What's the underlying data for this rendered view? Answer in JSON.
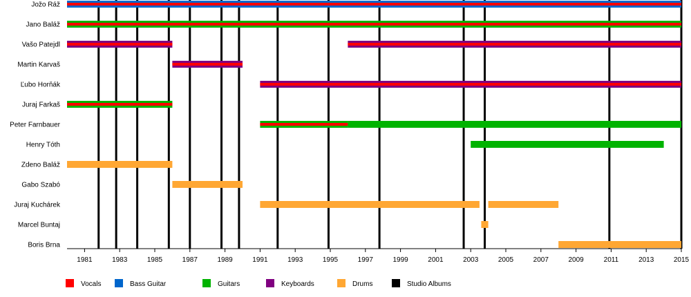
{
  "chart_data": {
    "type": "timeline",
    "x_range": [
      1980.0,
      2015.0
    ],
    "x_ticks": [
      "1981",
      "1983",
      "1985",
      "1987",
      "1989",
      "1991",
      "1993",
      "1995",
      "1997",
      "1999",
      "2001",
      "2003",
      "2005",
      "2007",
      "2009",
      "2011",
      "2013",
      "2015"
    ],
    "members": [
      {
        "name": "Jožo Ráž",
        "bars": [
          {
            "start": 1980.0,
            "end": 2015.0,
            "roles": [
              "vocals",
              "bass"
            ]
          }
        ]
      },
      {
        "name": "Jano Baláž",
        "bars": [
          {
            "start": 1980.0,
            "end": 2015.0,
            "roles": [
              "vocals",
              "guitars"
            ]
          }
        ]
      },
      {
        "name": "Vašo Patejdl",
        "bars": [
          {
            "start": 1980.0,
            "end": 1986.0,
            "roles": [
              "vocals",
              "keyboards"
            ]
          },
          {
            "start": 1996.0,
            "end": 2015.0,
            "roles": [
              "vocals",
              "keyboards"
            ]
          }
        ]
      },
      {
        "name": "Martin Karvaš",
        "bars": [
          {
            "start": 1986.0,
            "end": 1990.0,
            "roles": [
              "vocals",
              "keyboards"
            ]
          }
        ]
      },
      {
        "name": "Ľubo Horňák",
        "bars": [
          {
            "start": 1991.0,
            "end": 2015.0,
            "roles": [
              "vocals",
              "keyboards"
            ]
          }
        ]
      },
      {
        "name": "Juraj Farkaš",
        "bars": [
          {
            "start": 1980.0,
            "end": 1986.0,
            "roles": [
              "vocals",
              "guitars"
            ]
          }
        ]
      },
      {
        "name": "Peter Farnbauer",
        "bars": [
          {
            "start": 1991.0,
            "end": 1996.0,
            "roles": [
              "vocals",
              "guitars"
            ]
          },
          {
            "start": 1996.0,
            "end": 2015.0,
            "roles": [
              "guitars"
            ]
          }
        ]
      },
      {
        "name": "Henry Tóth",
        "bars": [
          {
            "start": 2003.0,
            "end": 2014.0,
            "roles": [
              "guitars"
            ]
          }
        ]
      },
      {
        "name": "Zdeno Baláž",
        "bars": [
          {
            "start": 1980.0,
            "end": 1986.0,
            "roles": [
              "drums"
            ]
          }
        ]
      },
      {
        "name": "Gabo Szabó",
        "bars": [
          {
            "start": 1986.0,
            "end": 1990.0,
            "roles": [
              "drums"
            ]
          }
        ]
      },
      {
        "name": "Juraj Kuchárek",
        "bars": [
          {
            "start": 1991.0,
            "end": 2003.5,
            "roles": [
              "drums"
            ]
          },
          {
            "start": 2004.0,
            "end": 2008.0,
            "roles": [
              "drums"
            ]
          }
        ]
      },
      {
        "name": "Marcel Buntaj",
        "bars": [
          {
            "start": 2003.6,
            "end": 2004.0,
            "roles": [
              "drums"
            ]
          }
        ]
      },
      {
        "name": "Boris Brna",
        "bars": [
          {
            "start": 2008.0,
            "end": 2015.0,
            "roles": [
              "drums"
            ]
          }
        ]
      }
    ],
    "studio_albums": [
      1981.8,
      1982.8,
      1984.0,
      1985.8,
      1987.0,
      1988.8,
      1989.8,
      1992.0,
      1994.9,
      1997.8,
      2002.6,
      2003.8,
      2010.9,
      2015.0
    ],
    "legend": [
      {
        "key": "vocals",
        "label": "Vocals",
        "color": "#ff0000"
      },
      {
        "key": "bass",
        "label": "Bass Guitar",
        "color": "#0066cc"
      },
      {
        "key": "guitars",
        "label": "Guitars",
        "color": "#00b300"
      },
      {
        "key": "keyboards",
        "label": "Keyboards",
        "color": "#800080"
      },
      {
        "key": "drums",
        "label": "Drums",
        "color": "#ffa733"
      },
      {
        "key": "albums",
        "label": "Studio Albums",
        "color": "#000000"
      }
    ],
    "legend_placement": "bottom",
    "grid": false
  }
}
